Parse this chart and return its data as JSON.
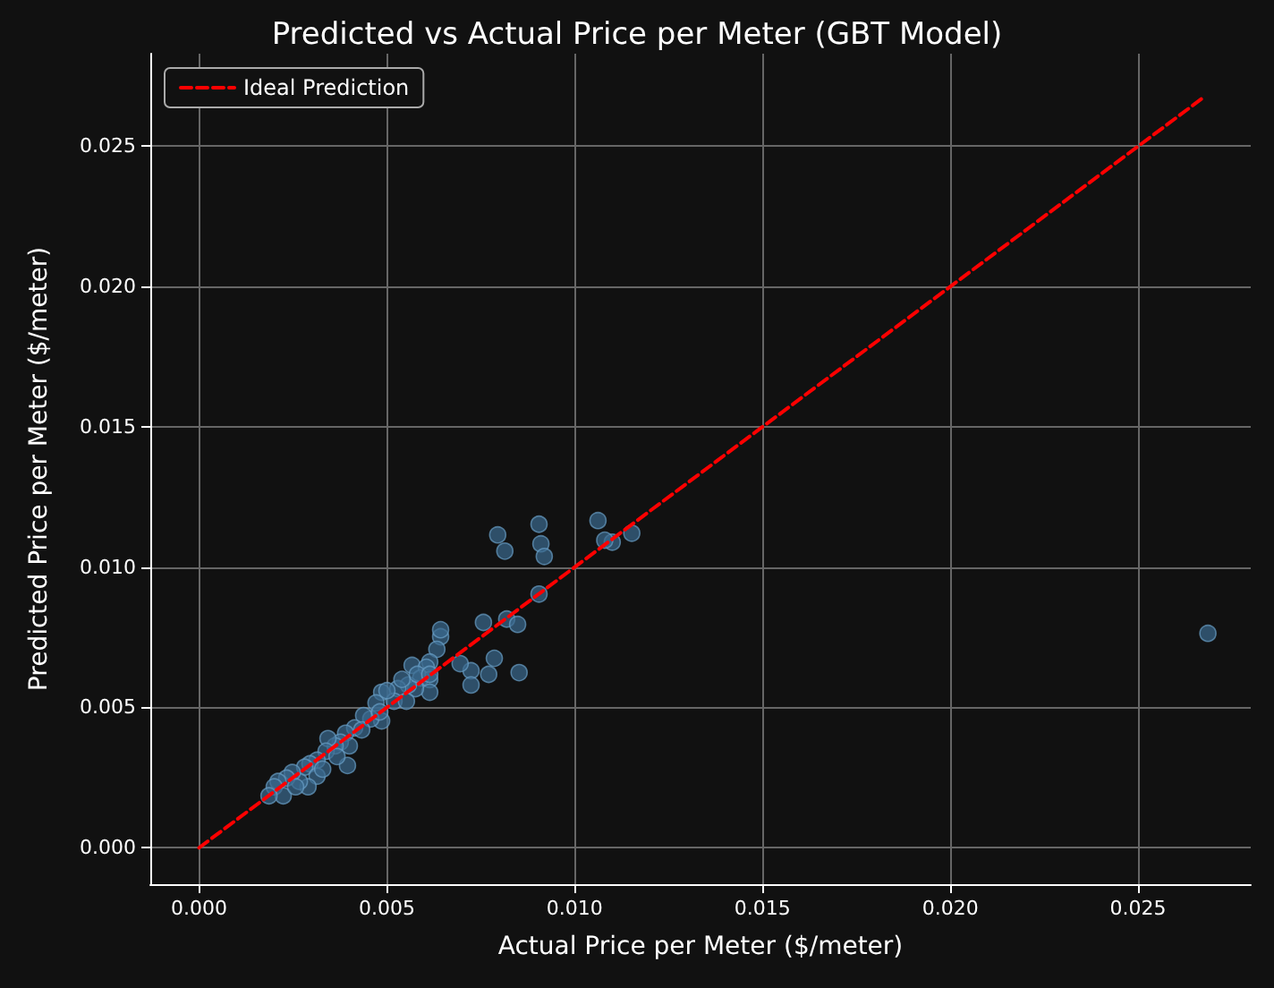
{
  "chart_data": {
    "type": "scatter",
    "title": "Predicted vs Actual Price per Meter (GBT Model)",
    "xlabel": "Actual Price per Meter ($/meter)",
    "ylabel": "Predicted Price per Meter ($/meter)",
    "xlim": [
      -0.0013,
      0.028
    ],
    "ylim": [
      -0.0013,
      0.0283
    ],
    "xticks": [
      {
        "value": 0,
        "label": "0.000"
      },
      {
        "value": 0.005,
        "label": "0.005"
      },
      {
        "value": 0.01,
        "label": "0.010"
      },
      {
        "value": 0.015,
        "label": "0.015"
      },
      {
        "value": 0.02,
        "label": "0.020"
      },
      {
        "value": 0.025,
        "label": "0.025"
      }
    ],
    "yticks": [
      {
        "value": 0,
        "label": "0.000"
      },
      {
        "value": 0.005,
        "label": "0.005"
      },
      {
        "value": 0.01,
        "label": "0.010"
      },
      {
        "value": 0.015,
        "label": "0.015"
      },
      {
        "value": 0.02,
        "label": "0.020"
      },
      {
        "value": 0.025,
        "label": "0.025"
      }
    ],
    "grid": true,
    "legend": "top left",
    "series": [
      {
        "marker": "circle",
        "color": "#3a6a8f",
        "x": [
          0.02686,
          0.00795,
          0.00814,
          0.00905,
          0.0091,
          0.00919,
          0.01062,
          0.011,
          0.0108,
          0.01152,
          0.00905,
          0.00819,
          0.00848,
          0.00852,
          0.00757,
          0.00786,
          0.00771,
          0.00724,
          0.00724,
          0.00695,
          0.00643,
          0.00633,
          0.00643,
          0.00614,
          0.00567,
          0.00605,
          0.0059,
          0.00614,
          0.00614,
          0.00576,
          0.00557,
          0.00529,
          0.00486,
          0.00519,
          0.00471,
          0.00486,
          0.00457,
          0.00438,
          0.00414,
          0.0039,
          0.00376,
          0.004,
          0.00362,
          0.00343,
          0.00338,
          0.00395,
          0.00314,
          0.00295,
          0.00281,
          0.00314,
          0.0029,
          0.00267,
          0.00248,
          0.00233,
          0.0021,
          0.002,
          0.00224,
          0.00186,
          0.00257,
          0.00329,
          0.00367,
          0.00433,
          0.00481,
          0.00552,
          0.00581,
          0.00614,
          0.005,
          0.0054
        ],
        "values": [
          0.00764,
          0.01115,
          0.01057,
          0.01153,
          0.01083,
          0.01038,
          0.01166,
          0.01089,
          0.01096,
          0.01121,
          0.00904,
          0.00815,
          0.00796,
          0.00624,
          0.00803,
          0.00675,
          0.00618,
          0.00631,
          0.0058,
          0.00656,
          0.00752,
          0.00707,
          0.00777,
          0.00662,
          0.0065,
          0.00643,
          0.00605,
          0.00599,
          0.00554,
          0.00567,
          0.0058,
          0.00567,
          0.00554,
          0.00522,
          0.00516,
          0.00452,
          0.00459,
          0.00471,
          0.00427,
          0.00408,
          0.00376,
          0.00363,
          0.00363,
          0.00389,
          0.00344,
          0.00293,
          0.00312,
          0.00299,
          0.00287,
          0.00255,
          0.00217,
          0.00236,
          0.00268,
          0.00248,
          0.00236,
          0.00217,
          0.00185,
          0.00185,
          0.00217,
          0.0028,
          0.00325,
          0.0042,
          0.00484,
          0.00522,
          0.00618,
          0.00618,
          0.0056,
          0.006
        ]
      },
      {
        "type": "line",
        "name": "Ideal Prediction",
        "marker": "none",
        "line_style": "dashed",
        "color": "#ff0000",
        "x": [
          0,
          0.0267
        ],
        "values": [
          0,
          0.0267
        ]
      }
    ]
  }
}
